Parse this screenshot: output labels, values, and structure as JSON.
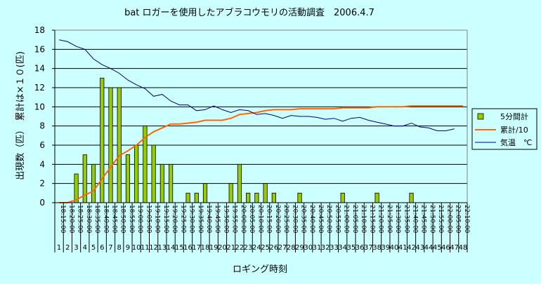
{
  "chart_data": {
    "type": "bar+line",
    "title": "bat ロガーを使用したアブラコウモリの活動調査　2006.4.7",
    "xlabel": "ロギング時刻",
    "ylabel": "出現数（匹）　累計は×１０(匹)",
    "ylim": [
      0,
      18
    ],
    "yticks": [
      0,
      2,
      4,
      6,
      8,
      10,
      12,
      14,
      16,
      18
    ],
    "grid": true,
    "legend_position": "right",
    "time_labels": [
      "18:15:00",
      "18:20:00",
      "18:25:00",
      "18:30:00",
      "18:35:00",
      "18:40:00",
      "18:45:00",
      "18:50:00",
      "18:55:00",
      "19:00:00",
      "19:05:00",
      "19:10:00",
      "19:15:00",
      "19:20:00",
      "19:25:00",
      "19:30:00",
      "19:35:00",
      "19:40:00",
      "19:45:00",
      "19:50:00",
      "19:55:00",
      "20:00:00",
      "20:05:00",
      "20:10:00",
      "20:15:00",
      "20:20:00",
      "20:25:00",
      "20:30:00",
      "20:35:00",
      "20:40:00",
      "20:45:00",
      "20:50:00",
      "20:55:00",
      "21:00:00",
      "21:05:00",
      "21:10:00",
      "21:15:00",
      "21:20:00",
      "21:25:00",
      "21:30:00",
      "21:35:00",
      "21:40:00",
      "21:45:00",
      "21:50:00",
      "21:55:00",
      "22:00:00",
      "22:05:00",
      "22:10:00"
    ],
    "index_labels": [
      "1",
      "2",
      "3",
      "4",
      "5",
      "6",
      "7",
      "8",
      "9",
      "10",
      "11",
      "12",
      "13",
      "14",
      "15",
      "16",
      "17",
      "18",
      "19",
      "20",
      "21",
      "22",
      "23",
      "24",
      "25",
      "26",
      "27",
      "28",
      "29",
      "30",
      "31",
      "32",
      "33",
      "34",
      "35",
      "36",
      "37",
      "38",
      "39",
      "40",
      "41",
      "42",
      "43",
      "44",
      "45",
      "46",
      "47",
      "48"
    ],
    "series": [
      {
        "name": "5分間計",
        "kind": "bar",
        "color": "#99cc00",
        "values": [
          0,
          0,
          3,
          5,
          4,
          13,
          12,
          12,
          5,
          6,
          8,
          6,
          4,
          4,
          0,
          1,
          1,
          2,
          0,
          0,
          2,
          4,
          1,
          1,
          2,
          1,
          0,
          0,
          1,
          0,
          0,
          0,
          0,
          1,
          0,
          0,
          0,
          1,
          0,
          0,
          0,
          1,
          0,
          0,
          0,
          0,
          0,
          0
        ]
      },
      {
        "name": "累計/10",
        "kind": "line",
        "color": "#ff6600",
        "values": [
          0,
          0,
          0.3,
          0.8,
          1.2,
          2.5,
          3.7,
          4.9,
          5.4,
          6.0,
          6.8,
          7.4,
          7.8,
          8.2,
          8.2,
          8.3,
          8.4,
          8.6,
          8.6,
          8.6,
          8.8,
          9.2,
          9.3,
          9.4,
          9.6,
          9.7,
          9.7,
          9.7,
          9.8,
          9.8,
          9.8,
          9.8,
          9.8,
          9.9,
          9.9,
          9.9,
          9.9,
          10.0,
          10.0,
          10.0,
          10.0,
          10.1,
          10.1,
          10.1,
          10.1,
          10.1,
          10.1,
          10.1
        ]
      },
      {
        "name": "気温　℃",
        "kind": "line",
        "color": "#000080",
        "values": [
          17.0,
          16.8,
          16.3,
          16.0,
          15.0,
          14.4,
          14.0,
          13.5,
          12.8,
          12.3,
          11.9,
          11.1,
          11.3,
          10.6,
          10.2,
          10.2,
          9.6,
          9.7,
          10.1,
          9.7,
          9.4,
          9.7,
          9.6,
          9.2,
          9.3,
          9.1,
          8.8,
          9.1,
          9.0,
          9.0,
          8.9,
          8.7,
          8.8,
          8.5,
          8.8,
          8.9,
          8.6,
          8.4,
          8.2,
          8.0,
          8.0,
          8.3,
          7.9,
          7.8,
          7.5,
          7.5,
          7.7,
          null
        ]
      }
    ]
  }
}
